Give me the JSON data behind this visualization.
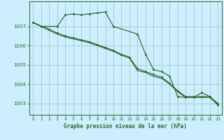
{
  "background_color": "#cceeff",
  "grid_color": "#aacccc",
  "line_color": "#2d6b2d",
  "title": "Graphe pression niveau de la mer (hPa)",
  "ylim": [
    1002.4,
    1008.3
  ],
  "xlim": [
    -0.5,
    23.5
  ],
  "yticks": [
    1003,
    1004,
    1005,
    1006,
    1007
  ],
  "xticks": [
    0,
    1,
    2,
    3,
    4,
    5,
    6,
    7,
    8,
    9,
    10,
    11,
    12,
    13,
    14,
    15,
    16,
    17,
    18,
    19,
    20,
    21,
    22,
    23
  ],
  "series1_x": [
    0,
    1,
    3,
    4,
    5,
    6,
    7,
    8,
    9,
    10,
    13,
    14,
    15,
    16,
    17,
    18,
    19,
    20,
    21,
    22,
    23
  ],
  "series1_y": [
    1007.2,
    1007.0,
    1007.0,
    1007.6,
    1007.65,
    1007.6,
    1007.65,
    1007.7,
    1007.75,
    1007.0,
    1006.6,
    1005.55,
    1004.75,
    1004.65,
    1004.4,
    1003.35,
    1003.3,
    1003.3,
    1003.55,
    1003.35,
    1002.9
  ],
  "series2_x": [
    0,
    2,
    3,
    4,
    5,
    6,
    7,
    8,
    9,
    10,
    11,
    12,
    13,
    14,
    15,
    16,
    17,
    18,
    19,
    20,
    21,
    22,
    23
  ],
  "series2_y": [
    1007.2,
    1006.85,
    1006.65,
    1006.5,
    1006.4,
    1006.3,
    1006.2,
    1006.05,
    1005.9,
    1005.75,
    1005.55,
    1005.4,
    1004.8,
    1004.65,
    1004.5,
    1004.35,
    1004.05,
    1003.65,
    1003.35,
    1003.35,
    1003.35,
    1003.35,
    1003.0
  ],
  "series3_x": [
    0,
    2,
    3,
    4,
    5,
    6,
    7,
    8,
    9,
    10,
    11,
    12,
    13,
    14,
    15,
    16,
    17,
    18,
    19,
    20,
    21,
    22,
    23
  ],
  "series3_y": [
    1007.2,
    1006.8,
    1006.6,
    1006.45,
    1006.35,
    1006.25,
    1006.15,
    1006.0,
    1005.85,
    1005.7,
    1005.5,
    1005.35,
    1004.7,
    1004.6,
    1004.4,
    1004.3,
    1004.0,
    1003.6,
    1003.3,
    1003.3,
    1003.3,
    1003.3,
    1002.95
  ]
}
